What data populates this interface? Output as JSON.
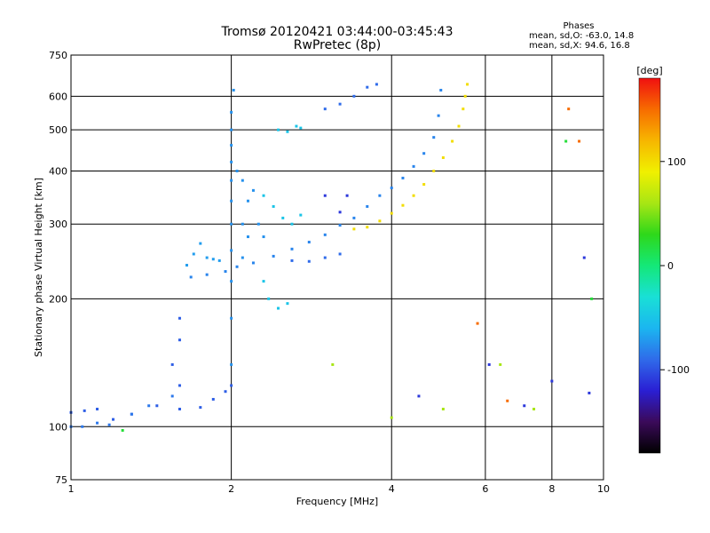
{
  "chart_data": {
    "type": "scatter",
    "title": "Tromsø 20120421 03:44:00-03:45:43",
    "subtitle": "RwPretec (8p)",
    "xlabel": "Frequency [MHz]",
    "ylabel": "Stationary phase Virtual Height [km]",
    "x_scale": "log",
    "y_scale": "log",
    "xlim": [
      1,
      10
    ],
    "ylim": [
      75,
      750
    ],
    "xticks": [
      {
        "value": 1,
        "label": "1"
      },
      {
        "value": 2,
        "label": "2"
      },
      {
        "value": 4,
        "label": "4"
      },
      {
        "value": 6,
        "label": "6"
      },
      {
        "value": 8,
        "label": "8"
      },
      {
        "value": 10,
        "label": "10"
      }
    ],
    "yticks": [
      {
        "value": 75,
        "label": "75"
      },
      {
        "value": 100,
        "label": "100"
      },
      {
        "value": 200,
        "label": "200"
      },
      {
        "value": 300,
        "label": "300"
      },
      {
        "value": 400,
        "label": "400"
      },
      {
        "value": 500,
        "label": "500"
      },
      {
        "value": 600,
        "label": "600"
      },
      {
        "value": 750,
        "label": "750"
      }
    ],
    "grid": true,
    "legend": {
      "heading": "Phases",
      "lines": [
        "mean, sd,O: -63.0, 14.8",
        "mean, sd,X:  94.6, 16.8"
      ],
      "placement": "top-right"
    },
    "colorbar": {
      "label": "[deg]",
      "range": [
        -180,
        180
      ],
      "ticks": [
        {
          "value": 100,
          "label": "100"
        },
        {
          "value": 0,
          "label": "0"
        },
        {
          "value": -100,
          "label": "-100"
        }
      ],
      "stops": [
        "#000000",
        "#3b0a5a",
        "#2a1fd4",
        "#2f6bea",
        "#1bb6f0",
        "#19e0d6",
        "#14e878",
        "#2ed81a",
        "#a8e614",
        "#f0f000",
        "#f7b600",
        "#f76c00",
        "#f01010"
      ]
    },
    "series": [
      {
        "phase": -95,
        "points": [
          [
            1.0,
            108
          ],
          [
            1.06,
            109
          ],
          [
            1.12,
            110
          ],
          [
            1.2,
            104
          ],
          [
            1.3,
            107
          ],
          [
            1.45,
            112
          ],
          [
            1.6,
            110
          ],
          [
            1.75,
            111
          ],
          [
            1.85,
            116
          ],
          [
            1.95,
            121
          ],
          [
            2.0,
            125
          ],
          [
            1.6,
            125
          ],
          [
            1.6,
            160
          ],
          [
            1.55,
            140
          ],
          [
            1.6,
            180
          ]
        ]
      },
      {
        "phase": -85,
        "points": [
          [
            1.0,
            100
          ],
          [
            1.05,
            100
          ],
          [
            1.12,
            102
          ],
          [
            1.18,
            101
          ],
          [
            1.3,
            107
          ],
          [
            1.4,
            112
          ],
          [
            1.55,
            118
          ]
        ]
      },
      {
        "phase": -80,
        "points": [
          [
            1.68,
            225
          ],
          [
            1.8,
            228
          ],
          [
            1.95,
            232
          ],
          [
            2.05,
            238
          ],
          [
            2.2,
            243
          ],
          [
            2.4,
            252
          ],
          [
            2.6,
            262
          ],
          [
            2.8,
            272
          ],
          [
            3.0,
            283
          ],
          [
            3.2,
            298
          ],
          [
            3.4,
            310
          ],
          [
            3.6,
            330
          ],
          [
            3.8,
            350
          ],
          [
            4.0,
            365
          ],
          [
            4.2,
            385
          ],
          [
            4.4,
            410
          ],
          [
            4.6,
            440
          ],
          [
            4.8,
            480
          ],
          [
            4.9,
            540
          ],
          [
            4.95,
            620
          ]
        ]
      },
      {
        "phase": -70,
        "points": [
          [
            1.65,
            240
          ],
          [
            1.7,
            255
          ],
          [
            1.75,
            270
          ],
          [
            1.8,
            250
          ],
          [
            1.85,
            248
          ],
          [
            1.9,
            246
          ]
        ]
      },
      {
        "phase": -75,
        "points": [
          [
            2.0,
            140
          ],
          [
            2.0,
            180
          ],
          [
            2.0,
            220
          ],
          [
            2.0,
            260
          ],
          [
            2.0,
            300
          ],
          [
            2.0,
            340
          ],
          [
            2.0,
            380
          ],
          [
            2.0,
            420
          ],
          [
            2.0,
            460
          ],
          [
            2.0,
            500
          ],
          [
            2.0,
            550
          ],
          [
            2.02,
            620
          ],
          [
            2.05,
            400
          ],
          [
            2.1,
            380
          ],
          [
            2.1,
            300
          ],
          [
            2.15,
            340
          ],
          [
            2.2,
            360
          ],
          [
            2.15,
            280
          ],
          [
            2.1,
            250
          ],
          [
            2.25,
            300
          ],
          [
            2.3,
            280
          ]
        ]
      },
      {
        "phase": -90,
        "points": [
          [
            2.6,
            246
          ],
          [
            2.8,
            245
          ],
          [
            3.0,
            250
          ],
          [
            3.2,
            255
          ],
          [
            3.0,
            560
          ],
          [
            3.2,
            575
          ],
          [
            3.4,
            600
          ],
          [
            3.6,
            630
          ],
          [
            3.75,
            640
          ]
        ]
      },
      {
        "phase": -50,
        "points": [
          [
            2.3,
            220
          ],
          [
            2.35,
            200
          ],
          [
            2.45,
            190
          ],
          [
            2.55,
            195
          ],
          [
            2.3,
            350
          ],
          [
            2.4,
            330
          ],
          [
            2.5,
            310
          ],
          [
            2.6,
            300
          ],
          [
            2.7,
            315
          ],
          [
            2.45,
            500
          ],
          [
            2.55,
            495
          ],
          [
            2.65,
            510
          ],
          [
            2.7,
            505
          ]
        ]
      },
      {
        "phase": 100,
        "points": [
          [
            3.4,
            292
          ],
          [
            3.6,
            295
          ],
          [
            3.8,
            305
          ],
          [
            4.0,
            318
          ],
          [
            4.2,
            332
          ],
          [
            4.4,
            350
          ],
          [
            4.6,
            372
          ],
          [
            4.8,
            400
          ],
          [
            5.0,
            430
          ],
          [
            5.2,
            470
          ],
          [
            5.35,
            510
          ],
          [
            5.45,
            560
          ],
          [
            5.5,
            600
          ],
          [
            5.55,
            640
          ]
        ]
      },
      {
        "phase": 60,
        "points": [
          [
            3.1,
            140
          ],
          [
            4.0,
            105
          ],
          [
            5.0,
            110
          ],
          [
            6.4,
            140
          ],
          [
            7.4,
            110
          ]
        ]
      },
      {
        "phase": -110,
        "points": [
          [
            3.0,
            350
          ],
          [
            3.2,
            320
          ],
          [
            3.3,
            350
          ],
          [
            4.5,
            118
          ],
          [
            6.1,
            140
          ],
          [
            7.1,
            112
          ],
          [
            8.0,
            128
          ],
          [
            9.2,
            250
          ],
          [
            9.4,
            120
          ]
        ]
      },
      {
        "phase": 150,
        "points": [
          [
            6.6,
            115
          ],
          [
            8.6,
            560
          ],
          [
            9.0,
            470
          ],
          [
            5.8,
            175
          ]
        ]
      },
      {
        "phase": 20,
        "points": [
          [
            1.25,
            98
          ],
          [
            8.5,
            470
          ],
          [
            9.5,
            200
          ]
        ]
      }
    ]
  }
}
